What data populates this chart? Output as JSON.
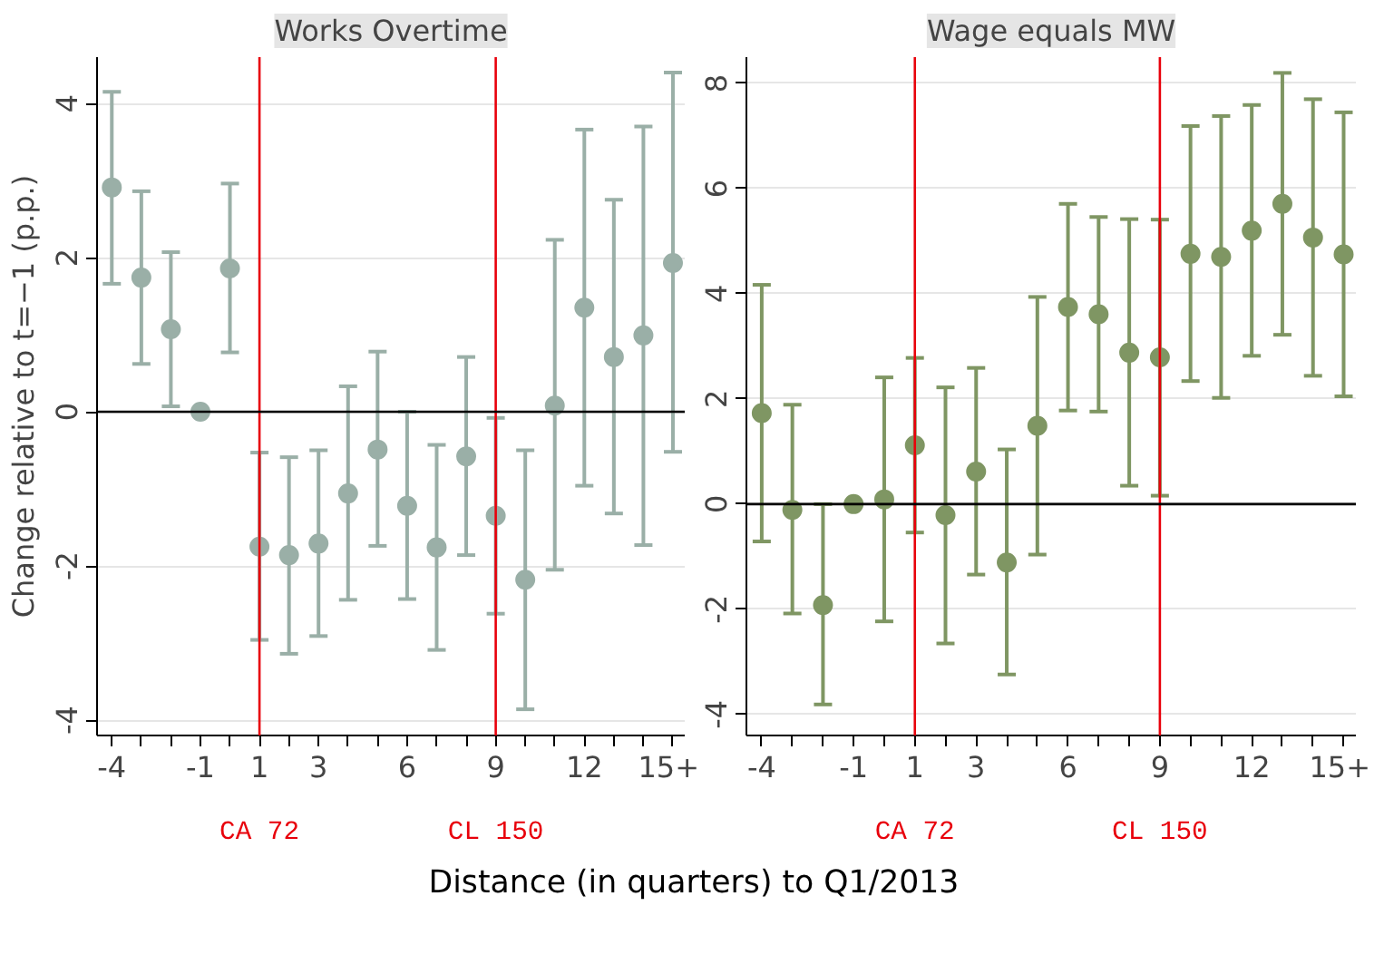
{
  "chart_data": [
    {
      "type": "scatter",
      "title": "Works Overtime",
      "ylabel": "Change relative to t=−1 (p.p.)",
      "xlabel": "Distance (in quarters) to Q1/2013",
      "x": [
        -4,
        -3,
        -2,
        -1,
        0,
        1,
        2,
        3,
        4,
        5,
        6,
        7,
        8,
        9,
        10,
        11,
        12,
        13,
        14,
        15
      ],
      "series": [
        {
          "color": "#9aafa7",
          "values": [
            2.91,
            1.74,
            1.07,
            0,
            1.86,
            -1.75,
            -1.86,
            -1.71,
            -1.06,
            -0.49,
            -1.22,
            -1.76,
            -0.58,
            -1.35,
            -2.18,
            0.08,
            1.35,
            0.71,
            0.99,
            1.93
          ],
          "errors": [
            [
              1.66,
              4.15
            ],
            [
              0.62,
              2.86
            ],
            [
              0.07,
              2.07
            ],
            null,
            [
              0.77,
              2.96
            ],
            [
              -2.96,
              -0.53
            ],
            [
              -3.14,
              -0.59
            ],
            [
              -2.91,
              -0.5
            ],
            [
              -2.44,
              0.33
            ],
            [
              -1.74,
              0.78
            ],
            [
              -2.43,
              0
            ],
            [
              -3.09,
              -0.43
            ],
            [
              -1.86,
              0.71
            ],
            [
              -2.62,
              -0.08
            ],
            [
              -3.86,
              -0.5
            ],
            [
              -2.05,
              2.23
            ],
            [
              -0.96,
              3.66
            ],
            [
              -1.32,
              2.75
            ],
            [
              -1.73,
              3.7
            ],
            [
              -0.52,
              4.4
            ]
          ]
        }
      ],
      "xlim": [
        -4.5,
        15.4
      ],
      "ylim": [
        -4.2,
        4.6
      ],
      "yticks": [
        -4,
        -2,
        0,
        2,
        4
      ],
      "xticks": [
        -4,
        {
          "value": -3,
          "label": null
        },
        {
          "value": -2,
          "label": null
        },
        -1,
        {
          "value": 0,
          "label": null
        },
        1,
        {
          "value": 2,
          "label": null
        },
        3,
        {
          "value": 4,
          "label": null
        },
        {
          "value": 5,
          "label": null
        },
        6,
        {
          "value": 7,
          "label": null
        },
        {
          "value": 8,
          "label": null
        },
        9,
        {
          "value": 10,
          "label": null
        },
        {
          "value": 11,
          "label": null
        },
        12,
        {
          "value": 13,
          "label": null
        },
        {
          "value": 14,
          "label": null
        },
        {
          "value": 15,
          "label": "15+"
        }
      ],
      "ref_lines": [
        {
          "axis": "x",
          "value": 1,
          "label": "CA 72",
          "color": "#e8000b"
        },
        {
          "axis": "x",
          "value": 9,
          "label": "CL 150",
          "color": "#e8000b"
        },
        {
          "axis": "y",
          "value": 0,
          "color": "#000000"
        }
      ],
      "grid": "y",
      "marker": "circle"
    },
    {
      "type": "scatter",
      "title": "Wage equals MW",
      "x": [
        -4,
        -3,
        -2,
        -1,
        0,
        1,
        2,
        3,
        4,
        5,
        6,
        7,
        8,
        9,
        10,
        11,
        12,
        13,
        14,
        15
      ],
      "series": [
        {
          "color": "#7f9663",
          "values": [
            1.73,
            -0.11,
            -1.92,
            0,
            0.09,
            1.12,
            -0.21,
            0.62,
            -1.11,
            1.49,
            3.75,
            3.61,
            2.88,
            2.79,
            4.76,
            4.7,
            5.2,
            5.71,
            5.07,
            4.75
          ],
          "errors": [
            [
              -0.71,
              4.17
            ],
            [
              -2.08,
              1.89
            ],
            [
              -3.81,
              0
            ],
            null,
            [
              -2.23,
              2.41
            ],
            [
              -0.54,
              2.78
            ],
            [
              -2.65,
              2.22
            ],
            [
              -1.34,
              2.59
            ],
            [
              -3.24,
              1.04
            ],
            [
              -0.96,
              3.94
            ],
            [
              1.78,
              5.71
            ],
            [
              1.76,
              5.46
            ],
            [
              0.35,
              5.42
            ],
            [
              0.16,
              5.41
            ],
            [
              2.34,
              7.19
            ],
            [
              2.02,
              7.38
            ],
            [
              2.82,
              7.59
            ],
            [
              3.22,
              8.2
            ],
            [
              2.44,
              7.7
            ],
            [
              2.05,
              7.45
            ]
          ]
        }
      ],
      "xlim": [
        -4.5,
        15.4
      ],
      "ylim": [
        -4.4,
        8.5
      ],
      "yticks": [
        -4,
        -2,
        0,
        2,
        4,
        6,
        8
      ],
      "xticks": [
        -4,
        {
          "value": -3,
          "label": null
        },
        {
          "value": -2,
          "label": null
        },
        -1,
        {
          "value": 0,
          "label": null
        },
        1,
        {
          "value": 2,
          "label": null
        },
        3,
        {
          "value": 4,
          "label": null
        },
        {
          "value": 5,
          "label": null
        },
        6,
        {
          "value": 7,
          "label": null
        },
        {
          "value": 8,
          "label": null
        },
        9,
        {
          "value": 10,
          "label": null
        },
        {
          "value": 11,
          "label": null
        },
        12,
        {
          "value": 13,
          "label": null
        },
        {
          "value": 14,
          "label": null
        },
        {
          "value": 15,
          "label": "15+"
        }
      ],
      "ref_lines": [
        {
          "axis": "x",
          "value": 1,
          "label": "CA 72",
          "color": "#e8000b"
        },
        {
          "axis": "x",
          "value": 9,
          "label": "CL 150",
          "color": "#e8000b"
        },
        {
          "axis": "y",
          "value": 0,
          "color": "#000000"
        }
      ],
      "grid": "y",
      "marker": "circle"
    }
  ]
}
